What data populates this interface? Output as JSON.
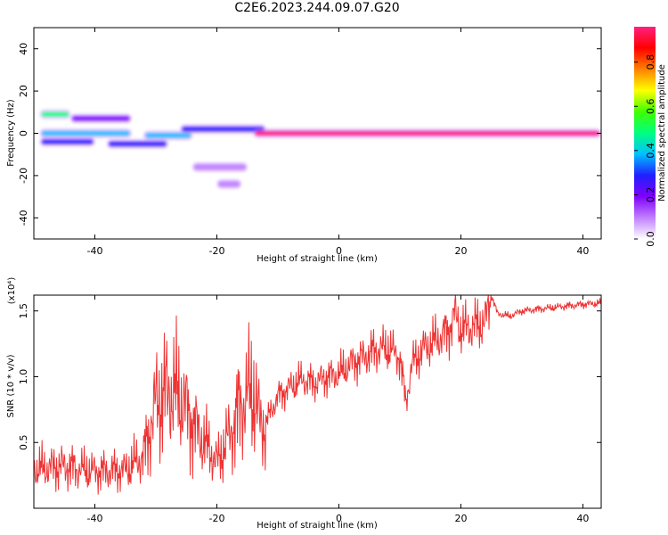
{
  "figure": {
    "title": "C2E6.2023.244.09.07.G20"
  },
  "chart_data": [
    {
      "type": "heatmap",
      "xlabel": "Height of straight line (km)",
      "ylabel": "Frequency (Hz)",
      "xlim": [
        -50,
        43
      ],
      "ylim": [
        -50,
        50
      ],
      "x_ticks": [
        -40,
        -20,
        0,
        20,
        40
      ],
      "y_ticks": [
        -40,
        -20,
        0,
        20,
        40
      ],
      "colorbar": {
        "label": "Normalized spectral amplitude",
        "range": [
          0,
          0.96
        ],
        "ticks": [
          0.0,
          0.2,
          0.4,
          0.6,
          0.8
        ],
        "colors": [
          "#ffffff",
          "#c080ff",
          "#8000ff",
          "#2020ff",
          "#00c0ff",
          "#00ff80",
          "#40ff00",
          "#ffff00",
          "#ff8000",
          "#ff0000",
          "#ff2080"
        ]
      },
      "features": [
        {
          "x": [
            -49,
            -44
          ],
          "y": 9,
          "amplitude": 0.45
        },
        {
          "x": [
            -44,
            -34
          ],
          "y": 7,
          "amplitude": 0.2
        },
        {
          "x": [
            -49,
            -34
          ],
          "y": 0,
          "amplitude": 0.4
        },
        {
          "x": [
            -49,
            -40
          ],
          "y": -4,
          "amplitude": 0.3
        },
        {
          "x": [
            -38,
            -28
          ],
          "y": -5,
          "amplitude": 0.3
        },
        {
          "x": [
            -32,
            -24
          ],
          "y": -1,
          "amplitude": 0.35
        },
        {
          "x": [
            -26,
            -12
          ],
          "y": 2,
          "amplitude": 0.3
        },
        {
          "x": [
            -14,
            43
          ],
          "y": 0,
          "amplitude": 0.92
        },
        {
          "x": [
            -24,
            -15
          ],
          "y": -16,
          "amplitude": 0.1
        },
        {
          "x": [
            -20,
            -16
          ],
          "y": -24,
          "amplitude": 0.1
        }
      ]
    },
    {
      "type": "line",
      "xlabel": "Height of straight line (km)",
      "ylabel": "SNR (10 * v/v)",
      "y_multiplier": "(x10⁴)",
      "xlim": [
        -50,
        43
      ],
      "ylim": [
        0,
        16200
      ],
      "x_ticks": [
        -40,
        -20,
        0,
        20,
        40
      ],
      "y_ticks": [
        0.5,
        1.0,
        1.5
      ],
      "y_tick_labels": [
        "0.5",
        "1.0",
        "1.5"
      ],
      "color": "#ee3333",
      "series": [
        {
          "x": [
            -50,
            -45,
            -40,
            -35,
            -32,
            -30,
            -28,
            -26,
            -24,
            -22,
            -20,
            -18,
            -16,
            -14,
            -13,
            -12,
            -10,
            -8,
            -6,
            -4,
            -2,
            0,
            2,
            4,
            6,
            8,
            10,
            11,
            12,
            14,
            16,
            18,
            19,
            20,
            22,
            24,
            25,
            26,
            28,
            30,
            32,
            34,
            36,
            38,
            40,
            43
          ],
          "y": [
            3000,
            3200,
            2800,
            2900,
            4000,
            8000,
            9000,
            8500,
            6500,
            5000,
            3500,
            5500,
            8000,
            9000,
            6500,
            6500,
            8500,
            9200,
            9800,
            9500,
            10000,
            10200,
            11000,
            11500,
            12000,
            12200,
            11500,
            8000,
            11000,
            12200,
            12800,
            13500,
            14800,
            13600,
            13800,
            14200,
            16200,
            14800,
            14600,
            15000,
            15100,
            15200,
            15300,
            15400,
            15500,
            15600
          ]
        }
      ]
    }
  ]
}
